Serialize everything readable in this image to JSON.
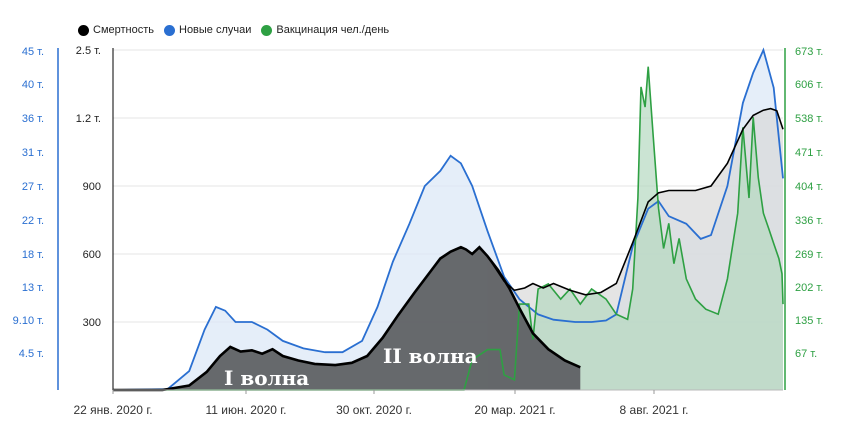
{
  "legend": [
    {
      "name": "Смертность",
      "color": "#000000"
    },
    {
      "name": "Новые случаи",
      "color": "#2a6fd1"
    },
    {
      "name": "Вакцинация чел./день",
      "color": "#2ea043"
    }
  ],
  "annotations": {
    "wave1": "I волна",
    "wave2": "II волна"
  },
  "chart_data": {
    "type": "area",
    "x_tick_labels": [
      "22 янв. 2020 г.",
      "11 июн. 2020 г.",
      "30 окт. 2020 г.",
      "20 мар. 2021 г.",
      "8 авг. 2021 г."
    ],
    "x_range": [
      "2020-01-22",
      "2021-11-03"
    ],
    "left_axis_cases": {
      "ticks": [
        "4.5 т.",
        "9.10 т.",
        "13 т.",
        "18 т.",
        "22 т.",
        "27 т.",
        "31 т.",
        "36 т.",
        "40 т.",
        "45 т."
      ],
      "color": "#2a6fd1"
    },
    "left_axis_deaths": {
      "ticks": [
        "300",
        "600",
        "900",
        "1.2 т.",
        "2.5 т."
      ],
      "color": "#000000"
    },
    "right_axis_vaccination": {
      "ticks": [
        "67 т.",
        "135 т.",
        "202 т.",
        "269 т.",
        "336 т.",
        "404 т.",
        "471 т.",
        "538 т.",
        "606 т.",
        "673 т."
      ],
      "color": "#2ea043"
    },
    "series": [
      {
        "name": "Смертность",
        "color": "#000000",
        "values": [
          [
            "2020-01-22",
            0
          ],
          [
            "2020-03-10",
            0
          ],
          [
            "2020-04-05",
            20
          ],
          [
            "2020-04-22",
            80
          ],
          [
            "2020-05-05",
            150
          ],
          [
            "2020-05-15",
            190
          ],
          [
            "2020-05-25",
            170
          ],
          [
            "2020-06-05",
            175
          ],
          [
            "2020-06-15",
            160
          ],
          [
            "2020-06-25",
            180
          ],
          [
            "2020-07-05",
            150
          ],
          [
            "2020-07-20",
            130
          ],
          [
            "2020-08-05",
            115
          ],
          [
            "2020-08-25",
            110
          ],
          [
            "2020-09-10",
            120
          ],
          [
            "2020-09-25",
            150
          ],
          [
            "2020-10-10",
            230
          ],
          [
            "2020-10-25",
            330
          ],
          [
            "2020-11-10",
            430
          ],
          [
            "2020-11-25",
            520
          ],
          [
            "2020-12-05",
            580
          ],
          [
            "2020-12-15",
            610
          ],
          [
            "2020-12-25",
            630
          ],
          [
            "2020-12-30",
            620
          ],
          [
            "2021-01-05",
            600
          ],
          [
            "2021-01-12",
            630
          ],
          [
            "2021-01-20",
            590
          ],
          [
            "2021-01-30",
            530
          ],
          [
            "2021-02-10",
            450
          ],
          [
            "2021-02-20",
            360
          ],
          [
            "2021-03-05",
            250
          ],
          [
            "2021-03-20",
            180
          ],
          [
            "2021-04-05",
            130
          ],
          [
            "2021-04-20",
            100
          ]
        ]
      },
      {
        "name": "Смертность",
        "color": "#000000",
        "values": [
          [
            "2021-01-20",
            590
          ],
          [
            "2021-02-05",
            480
          ],
          [
            "2021-02-15",
            440
          ],
          [
            "2021-02-25",
            450
          ],
          [
            "2021-03-05",
            470
          ],
          [
            "2021-03-15",
            450
          ],
          [
            "2021-03-25",
            470
          ],
          [
            "2021-04-10",
            440
          ],
          [
            "2021-04-25",
            420
          ],
          [
            "2021-05-10",
            430
          ],
          [
            "2021-05-25",
            470
          ],
          [
            "2021-06-10",
            650
          ],
          [
            "2021-06-25",
            830
          ],
          [
            "2021-07-05",
            870
          ],
          [
            "2021-07-15",
            880
          ],
          [
            "2021-07-25",
            880
          ],
          [
            "2021-08-10",
            880
          ],
          [
            "2021-08-25",
            900
          ],
          [
            "2021-09-10",
            1000
          ],
          [
            "2021-09-25",
            1150
          ],
          [
            "2021-10-05",
            1250
          ],
          [
            "2021-10-15",
            1350
          ],
          [
            "2021-10-22",
            1380
          ],
          [
            "2021-10-28",
            1340
          ],
          [
            "2021-11-03",
            1150
          ]
        ]
      },
      {
        "name": "Новые случаи",
        "color": "#2a6fd1",
        "values": [
          [
            "2020-01-22",
            0
          ],
          [
            "2020-03-15",
            100
          ],
          [
            "2020-04-05",
            2500
          ],
          [
            "2020-04-20",
            8000
          ],
          [
            "2020-05-01",
            11000
          ],
          [
            "2020-05-10",
            10500
          ],
          [
            "2020-05-20",
            9000
          ],
          [
            "2020-06-05",
            9000
          ],
          [
            "2020-06-20",
            8000
          ],
          [
            "2020-07-05",
            6500
          ],
          [
            "2020-07-25",
            5500
          ],
          [
            "2020-08-15",
            5000
          ],
          [
            "2020-09-01",
            5000
          ],
          [
            "2020-09-20",
            6500
          ],
          [
            "2020-10-05",
            11000
          ],
          [
            "2020-10-20",
            17000
          ],
          [
            "2020-11-05",
            22000
          ],
          [
            "2020-11-20",
            27000
          ],
          [
            "2020-12-05",
            29000
          ],
          [
            "2020-12-15",
            31000
          ],
          [
            "2020-12-25",
            30000
          ],
          [
            "2021-01-05",
            27000
          ],
          [
            "2021-01-20",
            21000
          ],
          [
            "2021-02-05",
            15000
          ],
          [
            "2021-02-20",
            12000
          ],
          [
            "2021-03-10",
            10000
          ],
          [
            "2021-03-25",
            9300
          ],
          [
            "2021-04-15",
            9000
          ],
          [
            "2021-05-01",
            9000
          ],
          [
            "2021-05-15",
            9200
          ],
          [
            "2021-05-25",
            10000
          ],
          [
            "2021-06-10",
            19000
          ],
          [
            "2021-06-25",
            24000
          ],
          [
            "2021-07-05",
            25000
          ],
          [
            "2021-07-15",
            23000
          ],
          [
            "2021-08-01",
            22000
          ],
          [
            "2021-08-15",
            20000
          ],
          [
            "2021-08-25",
            20500
          ],
          [
            "2021-09-10",
            27000
          ],
          [
            "2021-09-25",
            38000
          ],
          [
            "2021-10-05",
            42000
          ],
          [
            "2021-10-15",
            45000
          ],
          [
            "2021-10-25",
            40000
          ],
          [
            "2021-11-03",
            28000
          ]
        ]
      },
      {
        "name": "Вакцинация чел./день",
        "color": "#2ea043",
        "values": [
          [
            "2020-01-22",
            0
          ],
          [
            "2020-12-28",
            0
          ],
          [
            "2021-01-05",
            60000
          ],
          [
            "2021-01-20",
            80000
          ],
          [
            "2021-02-01",
            80000
          ],
          [
            "2021-02-05",
            30000
          ],
          [
            "2021-02-15",
            20000
          ],
          [
            "2021-02-20",
            170000
          ],
          [
            "2021-03-01",
            170000
          ],
          [
            "2021-03-05",
            100000
          ],
          [
            "2021-03-10",
            200000
          ],
          [
            "2021-03-20",
            210000
          ],
          [
            "2021-04-01",
            180000
          ],
          [
            "2021-04-10",
            200000
          ],
          [
            "2021-04-20",
            170000
          ],
          [
            "2021-05-01",
            200000
          ],
          [
            "2021-05-15",
            180000
          ],
          [
            "2021-05-25",
            150000
          ],
          [
            "2021-06-05",
            140000
          ],
          [
            "2021-06-10",
            200000
          ],
          [
            "2021-06-15",
            380000
          ],
          [
            "2021-06-18",
            600000
          ],
          [
            "2021-06-22",
            560000
          ],
          [
            "2021-06-25",
            640000
          ],
          [
            "2021-06-30",
            500000
          ],
          [
            "2021-07-05",
            360000
          ],
          [
            "2021-07-10",
            280000
          ],
          [
            "2021-07-15",
            330000
          ],
          [
            "2021-07-20",
            250000
          ],
          [
            "2021-07-25",
            300000
          ],
          [
            "2021-08-01",
            220000
          ],
          [
            "2021-08-10",
            180000
          ],
          [
            "2021-08-20",
            160000
          ],
          [
            "2021-09-01",
            150000
          ],
          [
            "2021-09-10",
            220000
          ],
          [
            "2021-09-20",
            350000
          ],
          [
            "2021-09-25",
            520000
          ],
          [
            "2021-10-01",
            380000
          ],
          [
            "2021-10-05",
            540000
          ],
          [
            "2021-10-10",
            420000
          ],
          [
            "2021-10-15",
            350000
          ],
          [
            "2021-10-20",
            320000
          ],
          [
            "2021-10-25",
            290000
          ],
          [
            "2021-10-30",
            260000
          ],
          [
            "2021-11-02",
            230000
          ],
          [
            "2021-11-03",
            170000
          ]
        ]
      }
    ],
    "grid": true,
    "legend_position": "top-left"
  }
}
